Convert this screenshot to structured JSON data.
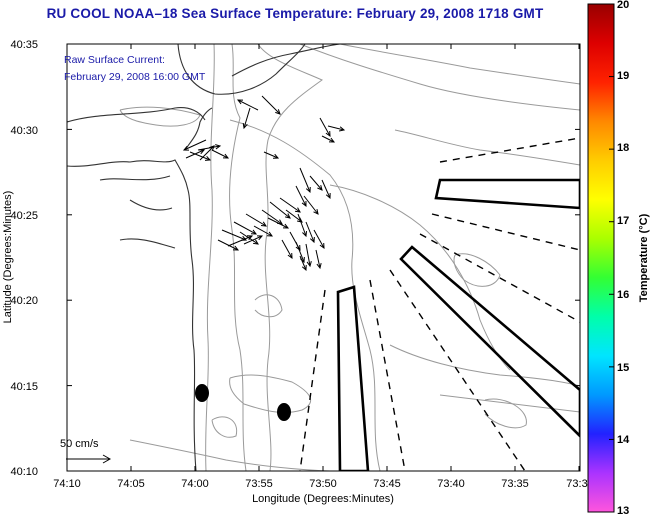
{
  "title": "RU COOL  NOAA–18  Sea Surface Temperature:  February 29, 2008 1718 GMT",
  "annotation": {
    "line1": "Raw Surface Current:",
    "line2": "February 29, 2008 16:00 GMT"
  },
  "scale": {
    "label": "50 cm/s"
  },
  "axes": {
    "xlabel": "Longitude (Degrees:Minutes)",
    "ylabel": "Latitude (Degrees:Minutes)",
    "xticks": [
      "74:10",
      "74:05",
      "74:00",
      "73:55",
      "73:50",
      "73:45",
      "73:40",
      "73:35",
      "73:3"
    ],
    "yticks": [
      "40:35",
      "40:30",
      "40:25",
      "40:20",
      "40:15",
      "40:10"
    ]
  },
  "colorbar": {
    "label": "Temperature (°C)",
    "ticks": [
      "20",
      "19",
      "18",
      "17",
      "16",
      "15",
      "14",
      "13"
    ],
    "min": 13,
    "max": 20,
    "colors": [
      "#ff55dd",
      "#aa33ff",
      "#2222ff",
      "#0099ff",
      "#00e5ff",
      "#00ffaa",
      "#33ff33",
      "#aaff00",
      "#ffff00",
      "#ffcc00",
      "#ff8800",
      "#ff2200",
      "#dd0000",
      "#990000"
    ]
  },
  "colors": {
    "title": "#1a1aa8",
    "annotation": "#1a1aa8",
    "coast": "#333333",
    "contour": "#999999",
    "vector": "#000000"
  }
}
